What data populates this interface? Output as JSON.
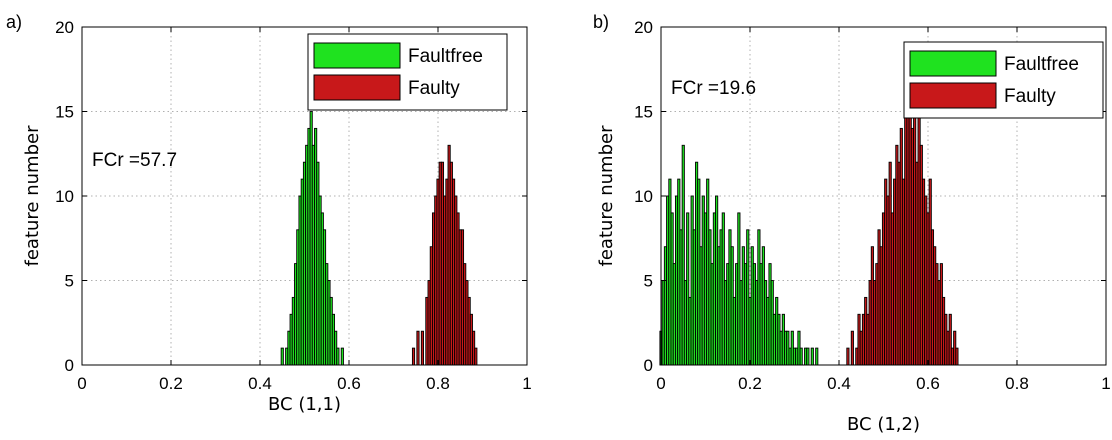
{
  "chart_data": [
    {
      "panel_label": "a)",
      "type": "bar",
      "xlabel": "BC (1,1)",
      "ylabel": "feature number",
      "xlim": [
        0,
        1
      ],
      "ylim": [
        0,
        20
      ],
      "xticks": [
        "0",
        "0.2",
        "0.4",
        "0.6",
        "0.8",
        "1"
      ],
      "yticks": [
        "0",
        "5",
        "10",
        "15",
        "20"
      ],
      "grid": true,
      "legend_position": "top-right",
      "annotation": "FCr =57.7",
      "bin_width": 0.005,
      "series": [
        {
          "name": "Faultfree",
          "color": "#1fe21f",
          "x": [
            0.45,
            0.46,
            0.465,
            0.47,
            0.475,
            0.48,
            0.485,
            0.49,
            0.495,
            0.5,
            0.505,
            0.51,
            0.515,
            0.52,
            0.525,
            0.53,
            0.535,
            0.54,
            0.545,
            0.55,
            0.555,
            0.56,
            0.565,
            0.57,
            0.575,
            0.585
          ],
          "values": [
            1,
            1,
            2,
            3,
            4,
            6,
            8,
            10,
            11,
            12,
            13,
            14,
            15,
            13,
            14,
            12,
            10,
            9,
            8,
            6,
            5,
            4,
            3,
            2,
            1,
            1
          ]
        },
        {
          "name": "Faulty",
          "color": "#c8181a",
          "x": [
            0.745,
            0.755,
            0.765,
            0.775,
            0.78,
            0.785,
            0.79,
            0.795,
            0.8,
            0.805,
            0.81,
            0.815,
            0.82,
            0.825,
            0.83,
            0.835,
            0.84,
            0.845,
            0.85,
            0.855,
            0.86,
            0.865,
            0.87,
            0.875,
            0.88,
            0.885
          ],
          "values": [
            1,
            2,
            2,
            4,
            5,
            7,
            9,
            10,
            11,
            12,
            12,
            10,
            11,
            13,
            12,
            11,
            10,
            9,
            8,
            8,
            6,
            5,
            4,
            3,
            2,
            1
          ]
        }
      ]
    },
    {
      "panel_label": "b)",
      "type": "bar",
      "xlabel": "BC (1,2)",
      "ylabel": "feature number",
      "xlim": [
        0,
        1
      ],
      "ylim": [
        0,
        20
      ],
      "xticks": [
        "0",
        "0.2",
        "0.4",
        "0.6",
        "0.8",
        "1"
      ],
      "yticks": [
        "0",
        "5",
        "10",
        "15",
        "20"
      ],
      "grid": true,
      "legend_position": "top-right",
      "annotation": "FCr =19.6",
      "bin_width": 0.005,
      "series": [
        {
          "name": "Faultfree",
          "color": "#1fe21f",
          "x": [
            0.0,
            0.005,
            0.01,
            0.015,
            0.02,
            0.025,
            0.03,
            0.035,
            0.04,
            0.045,
            0.05,
            0.055,
            0.06,
            0.065,
            0.07,
            0.075,
            0.08,
            0.085,
            0.09,
            0.095,
            0.1,
            0.105,
            0.11,
            0.115,
            0.12,
            0.125,
            0.13,
            0.135,
            0.14,
            0.145,
            0.15,
            0.155,
            0.16,
            0.165,
            0.17,
            0.175,
            0.18,
            0.185,
            0.19,
            0.195,
            0.2,
            0.205,
            0.21,
            0.215,
            0.22,
            0.225,
            0.23,
            0.235,
            0.24,
            0.245,
            0.25,
            0.255,
            0.26,
            0.265,
            0.27,
            0.275,
            0.28,
            0.285,
            0.29,
            0.295,
            0.3,
            0.305,
            0.31,
            0.315,
            0.32,
            0.325,
            0.33,
            0.34,
            0.35
          ],
          "values": [
            2,
            5,
            7,
            10,
            11,
            9,
            6,
            10,
            11,
            8,
            13,
            5,
            9,
            4,
            10,
            8,
            12,
            11,
            7,
            10,
            9,
            11,
            8,
            6,
            9,
            10,
            7,
            8,
            9,
            5,
            6,
            8,
            7,
            4,
            6,
            9,
            5,
            7,
            6,
            8,
            4,
            7,
            6,
            5,
            8,
            6,
            7,
            5,
            4,
            6,
            5,
            3,
            4,
            3,
            2,
            3,
            2,
            2,
            1,
            2,
            1,
            1,
            2,
            1,
            0,
            1,
            1,
            1,
            1
          ]
        },
        {
          "name": "Faulty",
          "color": "#c8181a",
          "x": [
            0.42,
            0.43,
            0.44,
            0.445,
            0.45,
            0.455,
            0.46,
            0.465,
            0.47,
            0.475,
            0.48,
            0.485,
            0.49,
            0.495,
            0.5,
            0.505,
            0.51,
            0.515,
            0.52,
            0.525,
            0.53,
            0.535,
            0.54,
            0.545,
            0.55,
            0.555,
            0.56,
            0.565,
            0.57,
            0.575,
            0.58,
            0.585,
            0.59,
            0.595,
            0.6,
            0.605,
            0.61,
            0.615,
            0.62,
            0.625,
            0.63,
            0.635,
            0.64,
            0.645,
            0.65,
            0.655,
            0.66,
            0.665
          ],
          "values": [
            1,
            2,
            1,
            3,
            2,
            3,
            4,
            3,
            5,
            7,
            5,
            6,
            8,
            7,
            9,
            11,
            10,
            12,
            9,
            11,
            13,
            12,
            14,
            11,
            15,
            16,
            15,
            14,
            16,
            12,
            15,
            13,
            11,
            10,
            9,
            11,
            8,
            7,
            6,
            5,
            6,
            4,
            3,
            2,
            3,
            1,
            2,
            1
          ]
        }
      ]
    }
  ]
}
